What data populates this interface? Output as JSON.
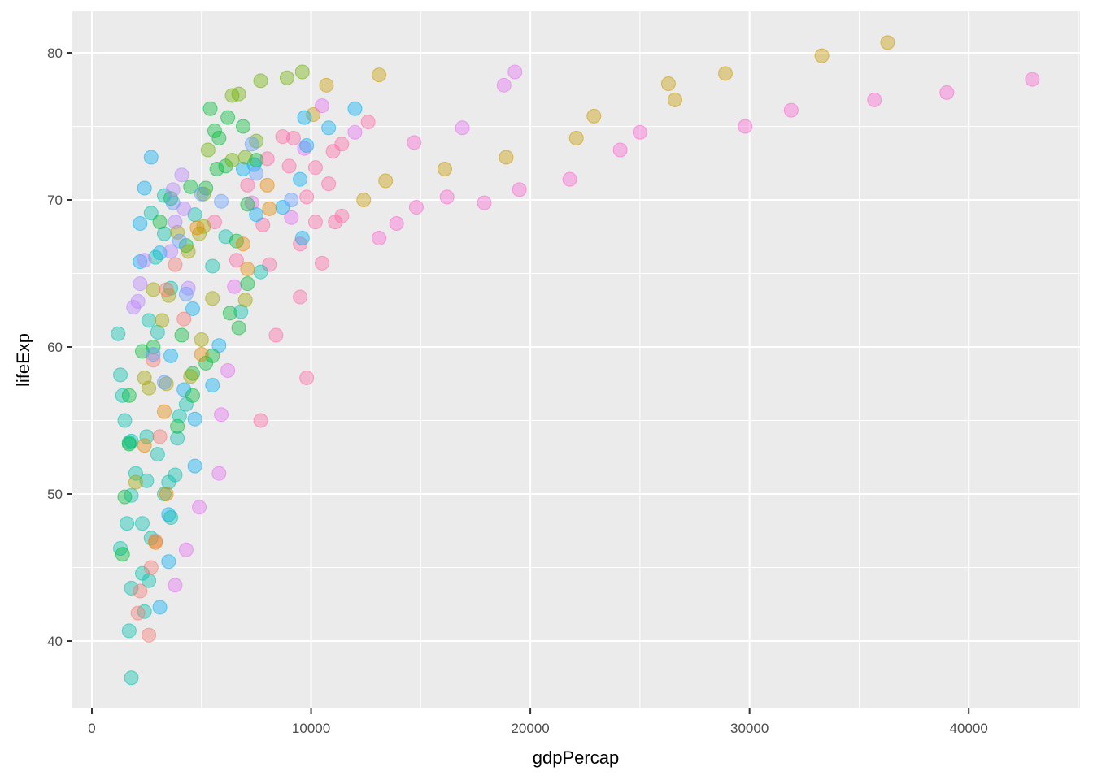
{
  "chart_data": {
    "type": "scatter",
    "title": "",
    "xlabel": "gdpPercap",
    "ylabel": "lifeExp",
    "xlim": [
      -900,
      44900
    ],
    "ylim": [
      35.4,
      82.9
    ],
    "x_ticks": [
      0,
      10000,
      20000,
      30000,
      40000
    ],
    "x_tick_labels": [
      "0",
      "10000",
      "20000",
      "30000",
      "40000"
    ],
    "y_ticks": [
      40,
      50,
      60,
      70,
      80
    ],
    "y_tick_labels": [
      "40",
      "50",
      "60",
      "70",
      "80"
    ],
    "grid": true,
    "legend": "none",
    "point_alpha": 0.4,
    "point_radius_px": 8.5,
    "palette": {
      "c1": "#F8766D",
      "c2": "#E58700",
      "c3": "#C99800",
      "c4": "#A3A500",
      "c5": "#6BB100",
      "c6": "#00BA38",
      "c7": "#00BF7D",
      "c8": "#00C0AF",
      "c9": "#00BCD8",
      "c10": "#00B0F6",
      "c11": "#619CFF",
      "c12": "#B983FF",
      "c13": "#E76BF3",
      "c14": "#FD61D1",
      "c15": "#FF67A4"
    },
    "points": [
      [
        36300,
        80.7,
        "c3"
      ],
      [
        33300,
        79.8,
        "c3"
      ],
      [
        28900,
        78.6,
        "c3"
      ],
      [
        26300,
        77.9,
        "c3"
      ],
      [
        26600,
        76.8,
        "c3"
      ],
      [
        22900,
        75.7,
        "c3"
      ],
      [
        22100,
        74.2,
        "c3"
      ],
      [
        18900,
        72.9,
        "c3"
      ],
      [
        13400,
        71.3,
        "c3"
      ],
      [
        12400,
        70.0,
        "c3"
      ],
      [
        16100,
        72.1,
        "c3"
      ],
      [
        13100,
        78.5,
        "c3"
      ],
      [
        10700,
        77.8,
        "c3"
      ],
      [
        10100,
        75.8,
        "c3"
      ],
      [
        42900,
        78.2,
        "c14"
      ],
      [
        39000,
        77.3,
        "c14"
      ],
      [
        35700,
        76.8,
        "c14"
      ],
      [
        31900,
        76.1,
        "c14"
      ],
      [
        29800,
        75.0,
        "c14"
      ],
      [
        25000,
        74.6,
        "c14"
      ],
      [
        24100,
        73.4,
        "c14"
      ],
      [
        21800,
        71.4,
        "c14"
      ],
      [
        19500,
        70.7,
        "c14"
      ],
      [
        17900,
        69.8,
        "c14"
      ],
      [
        16200,
        70.2,
        "c14"
      ],
      [
        14800,
        69.5,
        "c14"
      ],
      [
        13900,
        68.4,
        "c14"
      ],
      [
        13100,
        67.4,
        "c14"
      ],
      [
        14700,
        73.9,
        "c14"
      ],
      [
        19300,
        78.7,
        "c13"
      ],
      [
        18800,
        77.8,
        "c13"
      ],
      [
        16900,
        74.9,
        "c13"
      ],
      [
        12000,
        74.6,
        "c13"
      ],
      [
        10500,
        76.4,
        "c13"
      ],
      [
        9700,
        73.5,
        "c13"
      ],
      [
        9100,
        68.8,
        "c13"
      ],
      [
        7300,
        69.8,
        "c13"
      ],
      [
        6500,
        64.1,
        "c13"
      ],
      [
        6200,
        58.4,
        "c13"
      ],
      [
        5900,
        55.4,
        "c13"
      ],
      [
        5800,
        51.4,
        "c13"
      ],
      [
        4900,
        49.1,
        "c13"
      ],
      [
        4300,
        46.2,
        "c13"
      ],
      [
        3800,
        43.8,
        "c13"
      ],
      [
        12600,
        75.3,
        "c15"
      ],
      [
        11400,
        73.8,
        "c15"
      ],
      [
        11000,
        73.3,
        "c15"
      ],
      [
        10200,
        72.2,
        "c15"
      ],
      [
        9200,
        74.2,
        "c15"
      ],
      [
        8700,
        74.3,
        "c15"
      ],
      [
        9000,
        72.3,
        "c15"
      ],
      [
        9800,
        70.2,
        "c15"
      ],
      [
        10200,
        68.5,
        "c15"
      ],
      [
        11400,
        68.9,
        "c15"
      ],
      [
        11100,
        68.5,
        "c15"
      ],
      [
        9500,
        67.0,
        "c15"
      ],
      [
        10500,
        65.7,
        "c15"
      ],
      [
        9500,
        63.4,
        "c15"
      ],
      [
        8400,
        60.8,
        "c15"
      ],
      [
        9800,
        57.9,
        "c15"
      ],
      [
        7700,
        55.0,
        "c15"
      ],
      [
        8100,
        65.6,
        "c15"
      ],
      [
        7800,
        68.3,
        "c15"
      ],
      [
        8000,
        72.8,
        "c15"
      ],
      [
        10800,
        71.1,
        "c15"
      ],
      [
        5600,
        68.5,
        "c15"
      ],
      [
        6600,
        65.9,
        "c15"
      ],
      [
        7100,
        71.0,
        "c15"
      ],
      [
        12000,
        76.2,
        "c10"
      ],
      [
        10800,
        74.9,
        "c10"
      ],
      [
        9700,
        75.6,
        "c10"
      ],
      [
        9800,
        73.7,
        "c10"
      ],
      [
        9500,
        71.4,
        "c10"
      ],
      [
        9600,
        67.4,
        "c10"
      ],
      [
        8700,
        69.5,
        "c10"
      ],
      [
        7500,
        69.0,
        "c10"
      ],
      [
        7400,
        72.4,
        "c10"
      ],
      [
        6900,
        72.1,
        "c10"
      ],
      [
        2700,
        72.9,
        "c10"
      ],
      [
        2400,
        70.8,
        "c10"
      ],
      [
        2200,
        68.4,
        "c10"
      ],
      [
        2200,
        65.8,
        "c10"
      ],
      [
        3100,
        66.4,
        "c10"
      ],
      [
        3600,
        59.4,
        "c10"
      ],
      [
        4200,
        57.1,
        "c10"
      ],
      [
        4700,
        55.1,
        "c10"
      ],
      [
        4700,
        51.9,
        "c10"
      ],
      [
        3500,
        48.6,
        "c10"
      ],
      [
        3500,
        45.4,
        "c10"
      ],
      [
        3100,
        42.3,
        "c10"
      ],
      [
        4600,
        62.6,
        "c10"
      ],
      [
        5800,
        60.1,
        "c10"
      ],
      [
        5500,
        57.4,
        "c10"
      ],
      [
        2700,
        69.1,
        "c8"
      ],
      [
        3300,
        70.3,
        "c8"
      ],
      [
        3300,
        67.7,
        "c8"
      ],
      [
        2900,
        66.1,
        "c8"
      ],
      [
        3600,
        64.0,
        "c8"
      ],
      [
        2600,
        61.8,
        "c8"
      ],
      [
        3000,
        61.0,
        "c8"
      ],
      [
        1200,
        60.9,
        "c8"
      ],
      [
        1300,
        58.1,
        "c8"
      ],
      [
        1400,
        56.7,
        "c8"
      ],
      [
        1500,
        55.0,
        "c8"
      ],
      [
        1700,
        53.5,
        "c8"
      ],
      [
        1800,
        53.6,
        "c8"
      ],
      [
        2000,
        51.4,
        "c8"
      ],
      [
        2500,
        50.9,
        "c8"
      ],
      [
        1800,
        49.9,
        "c8"
      ],
      [
        1600,
        48.0,
        "c8"
      ],
      [
        2300,
        48.0,
        "c8"
      ],
      [
        1300,
        46.3,
        "c8"
      ],
      [
        2700,
        47.0,
        "c8"
      ],
      [
        2300,
        44.6,
        "c8"
      ],
      [
        2600,
        44.1,
        "c8"
      ],
      [
        1800,
        43.6,
        "c8"
      ],
      [
        2400,
        42.0,
        "c8"
      ],
      [
        1700,
        40.7,
        "c8"
      ],
      [
        1800,
        37.5,
        "c8"
      ],
      [
        3900,
        53.8,
        "c8"
      ],
      [
        4300,
        56.1,
        "c8"
      ],
      [
        3600,
        48.4,
        "c8"
      ],
      [
        3300,
        50.0,
        "c8"
      ],
      [
        4700,
        69.0,
        "c8"
      ],
      [
        6100,
        67.5,
        "c8"
      ],
      [
        6800,
        62.4,
        "c8"
      ],
      [
        7700,
        65.1,
        "c8"
      ],
      [
        5500,
        65.5,
        "c8"
      ],
      [
        2500,
        53.9,
        "c8"
      ],
      [
        3000,
        52.7,
        "c8"
      ],
      [
        3500,
        50.8,
        "c8"
      ],
      [
        4000,
        55.3,
        "c8"
      ],
      [
        3800,
        51.3,
        "c8"
      ],
      [
        5400,
        76.2,
        "c6"
      ],
      [
        6200,
        75.6,
        "c6"
      ],
      [
        5600,
        74.7,
        "c6"
      ],
      [
        5800,
        74.2,
        "c6"
      ],
      [
        6900,
        75.0,
        "c6"
      ],
      [
        5700,
        72.1,
        "c6"
      ],
      [
        6100,
        72.3,
        "c6"
      ],
      [
        4500,
        70.9,
        "c6"
      ],
      [
        5200,
        70.8,
        "c6"
      ],
      [
        3600,
        70.1,
        "c6"
      ],
      [
        3100,
        68.5,
        "c6"
      ],
      [
        4300,
        66.9,
        "c6"
      ],
      [
        2300,
        59.7,
        "c6"
      ],
      [
        1700,
        56.7,
        "c6"
      ],
      [
        1700,
        53.4,
        "c6"
      ],
      [
        1500,
        49.8,
        "c6"
      ],
      [
        1400,
        45.9,
        "c6"
      ],
      [
        4600,
        58.2,
        "c6"
      ],
      [
        4600,
        56.7,
        "c6"
      ],
      [
        5200,
        58.9,
        "c6"
      ],
      [
        5500,
        59.4,
        "c6"
      ],
      [
        6300,
        62.3,
        "c6"
      ],
      [
        6700,
        61.3,
        "c6"
      ],
      [
        7100,
        64.3,
        "c6"
      ],
      [
        6600,
        67.2,
        "c6"
      ],
      [
        2800,
        60.0,
        "c6"
      ],
      [
        3900,
        54.6,
        "c6"
      ],
      [
        4100,
        60.8,
        "c6"
      ],
      [
        7100,
        69.7,
        "c6"
      ],
      [
        7500,
        72.7,
        "c6"
      ],
      [
        6400,
        77.1,
        "c5"
      ],
      [
        6700,
        77.2,
        "c5"
      ],
      [
        7700,
        78.1,
        "c5"
      ],
      [
        8900,
        78.3,
        "c5"
      ],
      [
        9600,
        78.7,
        "c5"
      ],
      [
        5300,
        73.4,
        "c5"
      ],
      [
        6400,
        72.7,
        "c5"
      ],
      [
        7500,
        74.0,
        "c5"
      ],
      [
        7000,
        72.9,
        "c5"
      ],
      [
        5100,
        70.4,
        "c5"
      ],
      [
        3900,
        67.8,
        "c4"
      ],
      [
        4900,
        67.7,
        "c4"
      ],
      [
        4400,
        66.5,
        "c4"
      ],
      [
        5100,
        68.2,
        "c4"
      ],
      [
        3500,
        63.5,
        "c4"
      ],
      [
        2400,
        57.9,
        "c4"
      ],
      [
        2600,
        57.2,
        "c4"
      ],
      [
        3400,
        57.5,
        "c4"
      ],
      [
        2000,
        50.8,
        "c4"
      ],
      [
        2800,
        63.9,
        "c4"
      ],
      [
        3200,
        61.8,
        "c4"
      ],
      [
        5000,
        60.5,
        "c4"
      ],
      [
        5500,
        63.3,
        "c4"
      ],
      [
        7000,
        63.2,
        "c4"
      ],
      [
        4500,
        58.0,
        "c4"
      ],
      [
        2100,
        41.9,
        "c1"
      ],
      [
        2600,
        40.4,
        "c1"
      ],
      [
        2200,
        43.4,
        "c1"
      ],
      [
        2700,
        45.0,
        "c1"
      ],
      [
        3100,
        53.9,
        "c1"
      ],
      [
        2900,
        46.8,
        "c1"
      ],
      [
        3400,
        63.9,
        "c1"
      ],
      [
        3800,
        65.6,
        "c1"
      ],
      [
        4200,
        61.9,
        "c1"
      ],
      [
        2800,
        59.1,
        "c1"
      ],
      [
        6900,
        67.0,
        "c2"
      ],
      [
        8100,
        69.4,
        "c2"
      ],
      [
        8000,
        71.0,
        "c2"
      ],
      [
        5000,
        59.5,
        "c2"
      ],
      [
        3300,
        55.6,
        "c2"
      ],
      [
        2400,
        53.3,
        "c2"
      ],
      [
        3400,
        50.0,
        "c2"
      ],
      [
        2900,
        46.7,
        "c2"
      ],
      [
        4800,
        68.1,
        "c2"
      ],
      [
        7100,
        65.3,
        "c2"
      ],
      [
        3800,
        68.5,
        "c12"
      ],
      [
        4100,
        71.7,
        "c12"
      ],
      [
        3700,
        70.7,
        "c12"
      ],
      [
        4200,
        69.4,
        "c12"
      ],
      [
        3600,
        66.5,
        "c12"
      ],
      [
        2200,
        64.3,
        "c12"
      ],
      [
        2100,
        63.1,
        "c12"
      ],
      [
        1900,
        62.7,
        "c12"
      ],
      [
        2400,
        65.9,
        "c12"
      ],
      [
        4400,
        64.0,
        "c12"
      ],
      [
        5900,
        69.9,
        "c11"
      ],
      [
        4000,
        67.2,
        "c11"
      ],
      [
        3700,
        69.8,
        "c11"
      ],
      [
        5000,
        70.4,
        "c11"
      ],
      [
        7500,
        71.8,
        "c11"
      ],
      [
        9100,
        70.0,
        "c11"
      ],
      [
        2800,
        59.5,
        "c11"
      ],
      [
        3300,
        57.6,
        "c11"
      ],
      [
        4300,
        63.6,
        "c11"
      ],
      [
        7300,
        73.8,
        "c11"
      ]
    ]
  }
}
